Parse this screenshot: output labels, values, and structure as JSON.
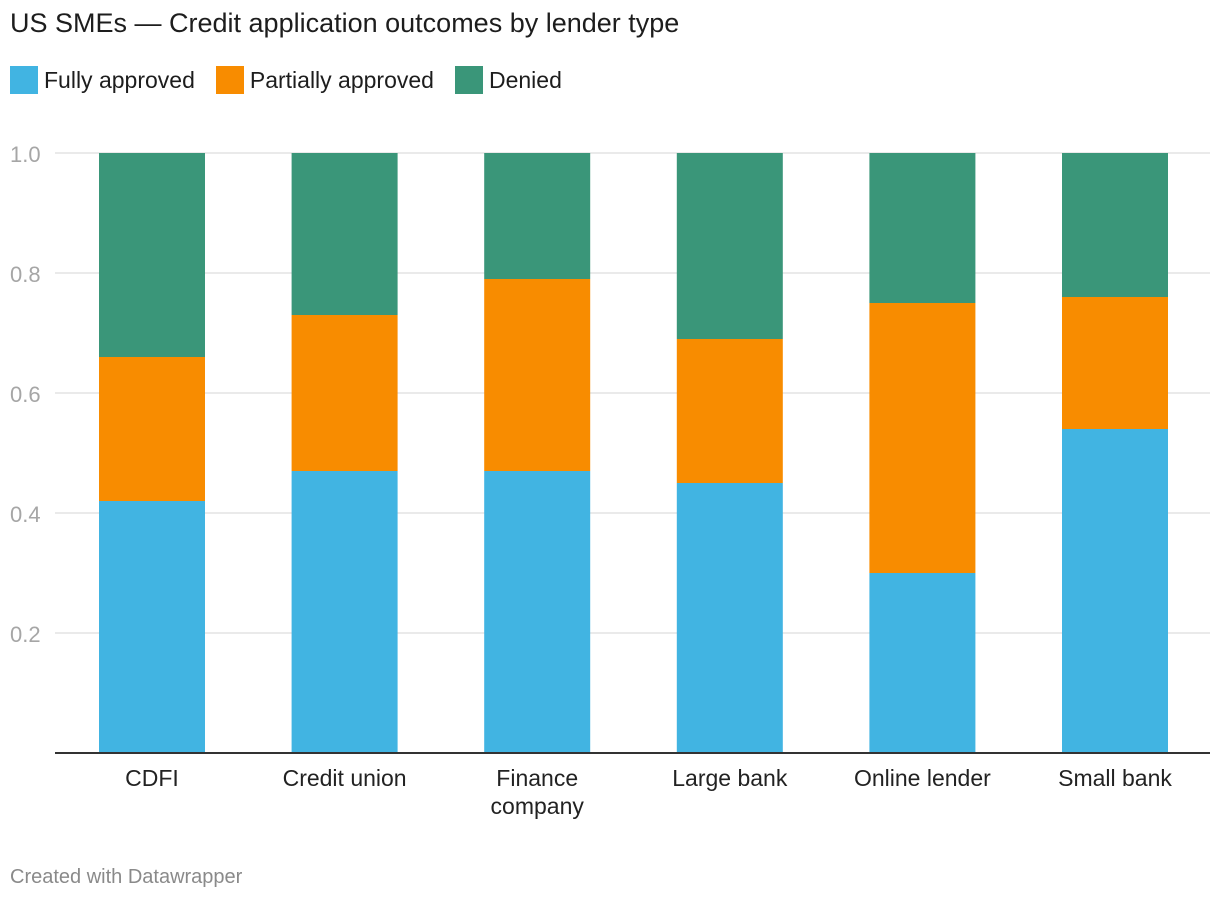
{
  "chart_data": {
    "type": "bar",
    "stacked": true,
    "title": "US SMEs — Credit application outcomes by lender type",
    "categories": [
      [
        "CDFI"
      ],
      [
        "Credit union"
      ],
      [
        "Finance",
        "company"
      ],
      [
        "Large bank"
      ],
      [
        "Online lender"
      ],
      [
        "Small bank"
      ]
    ],
    "series": [
      {
        "name": "Fully approved",
        "color": "#41b4e2",
        "values": [
          0.42,
          0.47,
          0.47,
          0.45,
          0.3,
          0.54
        ]
      },
      {
        "name": "Partially approved",
        "color": "#f88c00",
        "values": [
          0.24,
          0.26,
          0.32,
          0.24,
          0.45,
          0.22
        ]
      },
      {
        "name": "Denied",
        "color": "#3a9679",
        "values": [
          0.34,
          0.27,
          0.21,
          0.31,
          0.25,
          0.24
        ]
      }
    ],
    "ylim": [
      0,
      1.0
    ],
    "yticks": [
      {
        "value": 0.2,
        "label": "0.2"
      },
      {
        "value": 0.4,
        "label": "0.4"
      },
      {
        "value": 0.6,
        "label": "0.6"
      },
      {
        "value": 0.8,
        "label": "0.8"
      },
      {
        "value": 1.0,
        "label": "1.0"
      }
    ],
    "grid": true,
    "legend_position": "top-left"
  },
  "footer": "Created with Datawrapper"
}
